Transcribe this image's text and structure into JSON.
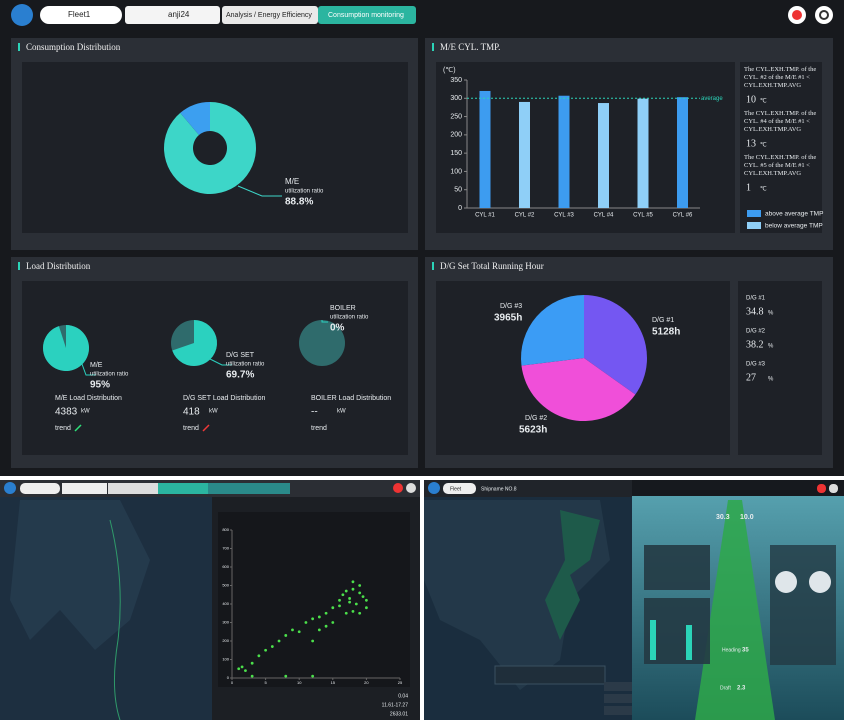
{
  "topbar": {
    "fleet": "Fleet1",
    "ship": "anji24",
    "menu": "Analysis / Energy Efficiency",
    "tab": "Consumption monitoring"
  },
  "consumption": {
    "title": "Consumption Distribution",
    "type": "donut",
    "name": "M/E",
    "label": "utilization ratio",
    "segments": [
      {
        "value": 88.8,
        "value_label": "88.8%",
        "color": "#3dd6c8"
      },
      {
        "value": 11.2,
        "color": "#3c9ff0"
      }
    ]
  },
  "cyl_tmp": {
    "title": "M/E CYL. TMP.",
    "type": "bar",
    "unit": "(℃)",
    "categories": [
      "CYL #1",
      "CYL #2",
      "CYL #3",
      "CYL #4",
      "CYL #5",
      "CYL #6"
    ],
    "values": [
      320,
      290,
      307,
      287,
      299,
      303
    ],
    "average": 300,
    "average_label": "average",
    "ylim": [
      0,
      350
    ],
    "yticks": [
      0,
      50,
      100,
      150,
      200,
      250,
      300,
      350
    ],
    "legend": [
      {
        "name": "above average TMP",
        "color": "#3d9cf0"
      },
      {
        "name": "below average TMP",
        "color": "#8fcff7"
      }
    ],
    "notes": [
      {
        "text": "The CYL.EXH.TMP. of the CYL. #2 of the M/E #1 < CYL.EXH.TMP.AVG",
        "value": 10,
        "unit": "℃"
      },
      {
        "text": "The CYL.EXH.TMP. of the CYL. #4 of the M/E #1 < CYL.EXH.TMP.AVG",
        "value": 13,
        "unit": "℃"
      },
      {
        "text": "The CYL.EXH.TMP. of the CYL. #5 of the M/E #1 < CYL.EXH.TMP.AVG",
        "value": 1,
        "unit": "℃"
      }
    ]
  },
  "load": {
    "title": "Load Distribution",
    "items": [
      {
        "name": "M/E",
        "label": "utilization ratio",
        "value": 95,
        "value_label": "95%",
        "caption": "M/E Load Distribution",
        "load": "4383",
        "unit": "kW",
        "trend": "trend"
      },
      {
        "name": "D/G SET",
        "label": "utilization ratio",
        "value": 69.7,
        "value_label": "69.7%",
        "caption": "D/G SET Load Distribution",
        "load": "418",
        "unit": "kW",
        "trend": "trend"
      },
      {
        "name": "BOILER",
        "label": "utilization ratio",
        "value": 0,
        "value_label": "0%",
        "caption": "BOILER Load Distribution",
        "load": "--",
        "unit": "kW",
        "trend": "trend"
      }
    ]
  },
  "running_hours": {
    "title": "D/G Set Total Running Hour",
    "type": "pie",
    "series": [
      {
        "name": "D/G #1",
        "value": 5128,
        "value_label": "5128h",
        "color": "#7457f2"
      },
      {
        "name": "D/G #2",
        "value": 5623,
        "value_label": "5623h",
        "color": "#f04fd9"
      },
      {
        "name": "D/G #3",
        "value": 3965,
        "value_label": "3965h",
        "color": "#3b9cf5"
      }
    ],
    "shares": [
      {
        "name": "D/G #1",
        "value": "34.8",
        "unit": "%"
      },
      {
        "name": "D/G #2",
        "value": "38.2",
        "unit": "%"
      },
      {
        "name": "D/G #3",
        "value": "27",
        "unit": "%"
      }
    ]
  },
  "screen_a": {
    "scatter": {
      "type": "scatter",
      "color": "#4be04b",
      "x": [
        1,
        1.5,
        2,
        3,
        4,
        5,
        6,
        7,
        8,
        9,
        10,
        11,
        12,
        13,
        14,
        15,
        16,
        16.5,
        17,
        17.5,
        18,
        18.5,
        19,
        19.5,
        20,
        17,
        18,
        19,
        16,
        20,
        15,
        14,
        13,
        12,
        18,
        17.5,
        19,
        3,
        8,
        12
      ],
      "y": [
        50,
        60,
        40,
        80,
        120,
        150,
        170,
        200,
        230,
        260,
        250,
        300,
        320,
        330,
        350,
        380,
        420,
        450,
        470,
        430,
        480,
        400,
        460,
        440,
        420,
        350,
        520,
        500,
        390,
        380,
        300,
        280,
        260,
        200,
        360,
        410,
        350,
        10,
        10,
        10
      ],
      "xlim": [
        0,
        25
      ],
      "xticks": [
        0,
        5,
        10,
        15,
        20,
        25
      ],
      "ylim": [
        0,
        800
      ],
      "yticks": [
        0,
        100,
        200,
        300,
        400,
        500,
        600,
        700,
        800
      ]
    },
    "stats": [
      "0.04",
      "11.61-17.27",
      "2633.01"
    ]
  },
  "screen_b": {
    "fleet": "Fleet",
    "ship": "Shipname NO.8",
    "speed": "30.3",
    "course": "10.0",
    "heading_label": "Heading",
    "heading": "35",
    "draft_label": "Draft",
    "draft": "2.3"
  }
}
